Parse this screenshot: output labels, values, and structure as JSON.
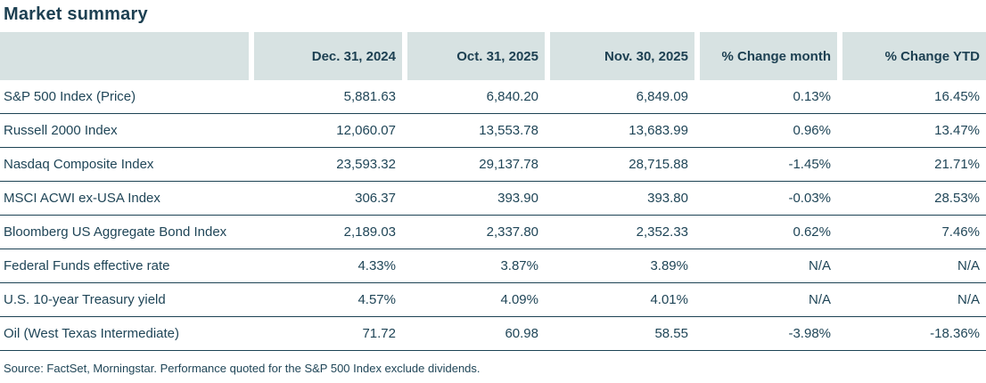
{
  "chart_data": {
    "type": "table",
    "title": "Market summary",
    "columns": [
      "",
      "Dec. 31, 2024",
      "Oct. 31, 2025",
      "Nov. 30, 2025",
      "% Change month",
      "% Change YTD"
    ],
    "rows": [
      {
        "label": "S&P 500 Index (Price)",
        "values": [
          "5,881.63",
          "6,840.20",
          "6,849.09",
          "0.13%",
          "16.45%"
        ]
      },
      {
        "label": "Russell 2000 Index",
        "values": [
          "12,060.07",
          "13,553.78",
          "13,683.99",
          "0.96%",
          "13.47%"
        ]
      },
      {
        "label": "Nasdaq Composite Index",
        "values": [
          "23,593.32",
          "29,137.78",
          "28,715.88",
          "-1.45%",
          "21.71%"
        ]
      },
      {
        "label": "MSCI ACWI ex-USA Index",
        "values": [
          "306.37",
          "393.90",
          "393.80",
          "-0.03%",
          "28.53%"
        ]
      },
      {
        "label": "Bloomberg US Aggregate Bond Index",
        "values": [
          "2,189.03",
          "2,337.80",
          "2,352.33",
          "0.62%",
          "7.46%"
        ]
      },
      {
        "label": "Federal Funds effective rate",
        "values": [
          "4.33%",
          "3.87%",
          "3.89%",
          "N/A",
          "N/A"
        ]
      },
      {
        "label": "U.S. 10-year Treasury yield",
        "values": [
          "4.57%",
          "4.09%",
          "4.01%",
          "N/A",
          "N/A"
        ]
      },
      {
        "label": "Oil (West Texas Intermediate)",
        "values": [
          "71.72",
          "60.98",
          "58.55",
          "-3.98%",
          "-18.36%"
        ]
      }
    ],
    "source_note": "Source: FactSet, Morningstar. Performance quoted for the S&P 500 Index exclude dividends."
  },
  "colors": {
    "header_bg": "#d7e2e2",
    "text": "#1f4557",
    "divider": "#1d4354"
  }
}
